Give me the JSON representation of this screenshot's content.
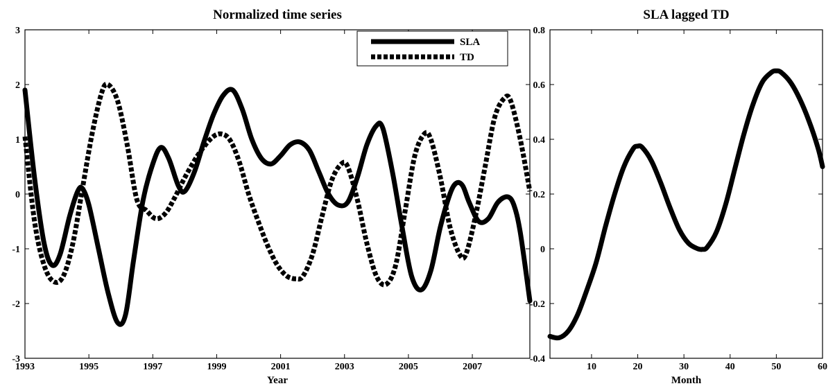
{
  "chart_data": [
    {
      "type": "line",
      "title": "Normalized time series",
      "xlabel": "Year",
      "ylabel": "",
      "xlim": [
        1993,
        2008.8
      ],
      "ylim": [
        -3,
        3
      ],
      "xticks": [
        1993,
        1995,
        1997,
        1999,
        2001,
        2003,
        2005,
        2007
      ],
      "yticks": [
        -3,
        -2,
        -1,
        0,
        1,
        2,
        3
      ],
      "grid": false,
      "legend": "top-right",
      "series": [
        {
          "name": "SLA",
          "style": "solid",
          "x": [
            1993.0,
            1993.3,
            1993.6,
            1993.85,
            1994.1,
            1994.4,
            1994.65,
            1994.8,
            1995.0,
            1995.3,
            1995.6,
            1995.9,
            1996.15,
            1996.4,
            1996.7,
            1997.0,
            1997.25,
            1997.5,
            1997.8,
            1998.0,
            1998.3,
            1998.6,
            1998.9,
            1999.2,
            1999.5,
            1999.8,
            2000.1,
            2000.4,
            2000.7,
            2001.0,
            2001.3,
            2001.6,
            2001.9,
            2002.2,
            2002.5,
            2002.8,
            2003.1,
            2003.4,
            2003.7,
            2004.0,
            2004.2,
            2004.5,
            2004.8,
            2005.1,
            2005.4,
            2005.7,
            2006.0,
            2006.3,
            2006.5,
            2006.7,
            2006.9,
            2007.2,
            2007.5,
            2007.8,
            2008.1,
            2008.3,
            2008.5,
            2008.8
          ],
          "values": [
            1.9,
            0.3,
            -0.9,
            -1.3,
            -1.1,
            -0.4,
            0.05,
            0.1,
            -0.2,
            -1.0,
            -1.8,
            -2.35,
            -2.2,
            -1.2,
            -0.1,
            0.55,
            0.85,
            0.65,
            0.15,
            0.05,
            0.4,
            0.95,
            1.45,
            1.8,
            1.9,
            1.55,
            1.0,
            0.65,
            0.55,
            0.7,
            0.9,
            0.95,
            0.8,
            0.4,
            0.0,
            -0.2,
            -0.15,
            0.3,
            0.9,
            1.25,
            1.2,
            0.4,
            -0.6,
            -1.5,
            -1.75,
            -1.4,
            -0.6,
            0.0,
            0.2,
            0.15,
            -0.15,
            -0.5,
            -0.45,
            -0.15,
            -0.05,
            -0.2,
            -0.7,
            -1.95
          ]
        },
        {
          "name": "TD",
          "style": "dashed",
          "x": [
            1993.0,
            1993.3,
            1993.6,
            1993.9,
            1994.2,
            1994.5,
            1994.8,
            1995.1,
            1995.4,
            1995.6,
            1995.9,
            1996.2,
            1996.5,
            1996.8,
            1997.1,
            1997.4,
            1997.7,
            1998.0,
            1998.4,
            1998.8,
            1999.1,
            1999.4,
            1999.7,
            2000.0,
            2000.3,
            2000.6,
            2000.9,
            2001.2,
            2001.5,
            2001.7,
            2002.0,
            2002.3,
            2002.6,
            2002.9,
            2003.1,
            2003.4,
            2003.7,
            2004.0,
            2004.3,
            2004.6,
            2004.9,
            2005.2,
            2005.5,
            2005.7,
            2006.0,
            2006.3,
            2006.6,
            2006.8,
            2007.1,
            2007.4,
            2007.7,
            2008.0,
            2008.2,
            2008.5,
            2008.8
          ],
          "values": [
            1.05,
            -0.5,
            -1.3,
            -1.6,
            -1.5,
            -0.9,
            0.1,
            1.1,
            1.85,
            2.0,
            1.7,
            0.9,
            -0.1,
            -0.3,
            -0.45,
            -0.35,
            -0.05,
            0.3,
            0.7,
            1.0,
            1.1,
            1.0,
            0.6,
            0.0,
            -0.5,
            -0.95,
            -1.3,
            -1.5,
            -1.55,
            -1.5,
            -1.1,
            -0.4,
            0.25,
            0.55,
            0.5,
            -0.1,
            -0.9,
            -1.5,
            -1.65,
            -1.3,
            -0.3,
            0.7,
            1.1,
            1.0,
            0.3,
            -0.6,
            -1.1,
            -1.1,
            -0.4,
            0.5,
            1.4,
            1.75,
            1.7,
            1.0,
            0.05
          ]
        }
      ]
    },
    {
      "type": "line",
      "title": "SLA lagged TD",
      "xlabel": "Month",
      "ylabel": "",
      "xlim": [
        1,
        60
      ],
      "ylim": [
        -0.4,
        0.8
      ],
      "xticks": [
        10,
        20,
        30,
        40,
        50,
        60
      ],
      "yticks": [
        -0.4,
        -0.2,
        0,
        0.2,
        0.4,
        0.6,
        0.8
      ],
      "grid": false,
      "series": [
        {
          "style": "solid",
          "x": [
            1,
            3,
            5,
            7,
            9,
            11,
            13,
            15,
            17,
            19,
            20,
            21,
            23,
            25,
            27,
            29,
            31,
            33,
            34,
            35,
            37,
            39,
            41,
            43,
            45,
            47,
            49,
            50,
            51,
            53,
            55,
            57,
            59,
            60
          ],
          "values": [
            -0.32,
            -0.325,
            -0.3,
            -0.24,
            -0.15,
            -0.05,
            0.08,
            0.2,
            0.3,
            0.365,
            0.375,
            0.37,
            0.32,
            0.24,
            0.15,
            0.07,
            0.02,
            0.0,
            -0.002,
            0.005,
            0.06,
            0.16,
            0.29,
            0.42,
            0.53,
            0.61,
            0.645,
            0.65,
            0.645,
            0.61,
            0.55,
            0.47,
            0.37,
            0.3
          ]
        }
      ]
    }
  ]
}
